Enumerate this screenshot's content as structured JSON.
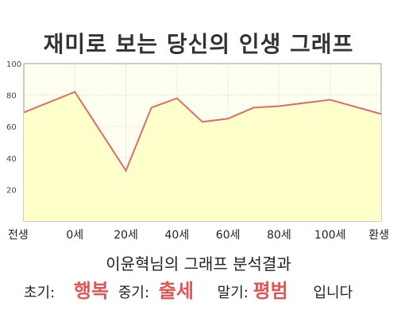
{
  "title": "재미로 보는 당신의 인생 그래프",
  "chart_data": {
    "type": "area",
    "title": "재미로 보는 당신의 인생 그래프",
    "x_labels": [
      "전생",
      "0세",
      "20세",
      "40세",
      "60세",
      "80세",
      "100세",
      "환생"
    ],
    "points": [
      {
        "t": 0,
        "v": 69
      },
      {
        "t": 1,
        "v": 82
      },
      {
        "t": 2,
        "v": 32
      },
      {
        "t": 2.5,
        "v": 72
      },
      {
        "t": 3,
        "v": 78
      },
      {
        "t": 3.5,
        "v": 63
      },
      {
        "t": 4,
        "v": 65
      },
      {
        "t": 4.5,
        "v": 72
      },
      {
        "t": 5,
        "v": 73
      },
      {
        "t": 6,
        "v": 77
      },
      {
        "t": 7,
        "v": 68
      }
    ],
    "ylim": [
      0,
      100
    ],
    "yticks": [
      20,
      40,
      60,
      80,
      100
    ],
    "grid": true,
    "line_color": "#e06b6b",
    "fill_color": "#ffffcc",
    "plot_bg": "#fffff0"
  },
  "result": {
    "title": "이윤혁님의 그래프 분석결과",
    "early_label": "초기:",
    "early_value": "행복",
    "mid_label": "중기:",
    "mid_value": "출세",
    "late_label": "말기:",
    "late_value": "평범",
    "suffix": "입니다"
  }
}
